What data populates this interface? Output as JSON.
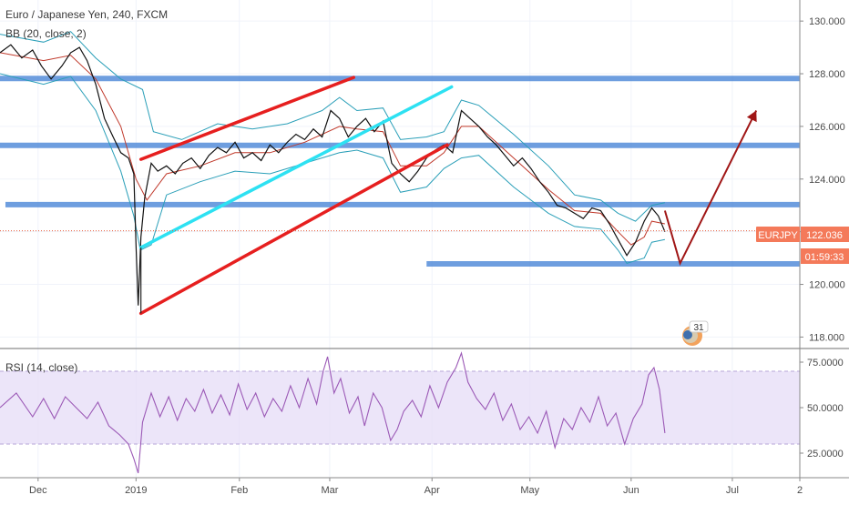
{
  "chart_title": "Euro / Japanese Yen, 240, FXCM",
  "bb_label": "BB (20, close, 2)",
  "rsi_label": "RSI (14, close)",
  "price_badge": {
    "symbol": "EURJPY",
    "price": "122.036",
    "countdown": "01:59:33"
  },
  "event_badge": "31",
  "colors": {
    "price": "#111111",
    "bollinger": "#2a9fb8",
    "sma": "#c0392b",
    "hline": "#4a86d8",
    "red_trend": "#e61f1f",
    "cyan_trend": "#2de1f2",
    "arrow": "#a01616",
    "rsi": "#9b59b6",
    "rsi_band": "#e5dcf7",
    "badge_bg": "#f47a5a"
  },
  "chart_data": [
    {
      "type": "line",
      "panel": "price",
      "y_ticks": [
        "130.000",
        "128.000",
        "126.000",
        "124.000",
        "122.000",
        "120.000",
        "118.000"
      ],
      "x_ticks": [
        "Dec",
        "2019",
        "Feb",
        "Mar",
        "Apr",
        "May",
        "Jun",
        "Jul",
        "2"
      ],
      "ylim": [
        117.6,
        130.8
      ],
      "anchors": {
        "x": [
          "Nov 20",
          "Dec 1",
          "2019 Jan 1",
          "Feb 1",
          "Mar 1",
          "Apr 1",
          "May 1",
          "Jun 1",
          "Jul 1",
          "Jul 21"
        ],
        "x_index": [
          -3.5,
          0,
          9,
          18.5,
          26.8,
          36.2,
          45.2,
          54.5,
          63.8,
          70
        ]
      },
      "price_points": [
        [
          -3.5,
          128.8
        ],
        [
          -2.5,
          129.1
        ],
        [
          -1.5,
          128.6
        ],
        [
          -0.5,
          128.9
        ],
        [
          0.3,
          128.3
        ],
        [
          1.2,
          127.8
        ],
        [
          2.2,
          128.3
        ],
        [
          3.0,
          128.8
        ],
        [
          3.8,
          129.0
        ],
        [
          4.5,
          128.5
        ],
        [
          5.3,
          127.6
        ],
        [
          6.1,
          126.3
        ],
        [
          6.9,
          125.6
        ],
        [
          7.6,
          125.0
        ],
        [
          8.3,
          124.8
        ],
        [
          8.8,
          124.2
        ],
        [
          9.0,
          121.5
        ],
        [
          9.2,
          119.2
        ],
        [
          9.45,
          121.8
        ],
        [
          9.8,
          123.3
        ],
        [
          10.4,
          124.6
        ],
        [
          11.0,
          124.3
        ],
        [
          11.8,
          124.5
        ],
        [
          12.6,
          124.2
        ],
        [
          13.3,
          124.6
        ],
        [
          14.1,
          124.8
        ],
        [
          14.9,
          124.4
        ],
        [
          15.7,
          124.9
        ],
        [
          16.5,
          125.2
        ],
        [
          17.3,
          125.0
        ],
        [
          18.1,
          125.4
        ],
        [
          18.9,
          124.8
        ],
        [
          19.7,
          125.0
        ],
        [
          20.5,
          124.7
        ],
        [
          21.3,
          125.3
        ],
        [
          22.1,
          125.0
        ],
        [
          22.9,
          125.4
        ],
        [
          23.7,
          125.7
        ],
        [
          24.5,
          125.5
        ],
        [
          25.3,
          125.9
        ],
        [
          26.1,
          125.6
        ],
        [
          26.9,
          126.6
        ],
        [
          27.7,
          126.3
        ],
        [
          28.5,
          125.6
        ],
        [
          29.3,
          126.0
        ],
        [
          30.1,
          126.3
        ],
        [
          30.9,
          125.8
        ],
        [
          31.7,
          126.2
        ],
        [
          32.5,
          124.6
        ],
        [
          33.3,
          124.2
        ],
        [
          34.1,
          123.9
        ],
        [
          34.9,
          124.3
        ],
        [
          35.7,
          124.8
        ],
        [
          36.5,
          125.1
        ],
        [
          37.3,
          125.3
        ],
        [
          38.1,
          125.0
        ],
        [
          38.9,
          126.6
        ],
        [
          39.7,
          126.3
        ],
        [
          40.5,
          126.0
        ],
        [
          41.3,
          125.6
        ],
        [
          42.1,
          125.3
        ],
        [
          42.9,
          124.9
        ],
        [
          43.7,
          124.5
        ],
        [
          44.5,
          124.8
        ],
        [
          45.3,
          124.4
        ],
        [
          46.1,
          123.9
        ],
        [
          46.9,
          123.5
        ],
        [
          47.7,
          123.0
        ],
        [
          48.5,
          122.9
        ],
        [
          49.3,
          122.7
        ],
        [
          50.1,
          122.5
        ],
        [
          50.9,
          122.9
        ],
        [
          51.7,
          122.8
        ],
        [
          52.5,
          122.3
        ],
        [
          53.3,
          121.7
        ],
        [
          54.1,
          121.1
        ],
        [
          54.9,
          121.6
        ],
        [
          55.7,
          122.4
        ],
        [
          56.4,
          122.9
        ],
        [
          57.0,
          122.6
        ],
        [
          57.6,
          122.0
        ]
      ],
      "upper_band_points": [
        [
          -3.5,
          129.5
        ],
        [
          0.5,
          129.2
        ],
        [
          3.0,
          129.6
        ],
        [
          5.3,
          128.6
        ],
        [
          7.6,
          127.8
        ],
        [
          9.6,
          127.4
        ],
        [
          10.6,
          125.8
        ],
        [
          13.2,
          125.5
        ],
        [
          16.5,
          126.1
        ],
        [
          19.7,
          125.9
        ],
        [
          22.9,
          126.1
        ],
        [
          26.1,
          126.6
        ],
        [
          27.7,
          127.1
        ],
        [
          29.3,
          126.6
        ],
        [
          31.7,
          126.7
        ],
        [
          33.3,
          125.5
        ],
        [
          35.7,
          125.6
        ],
        [
          37.3,
          125.8
        ],
        [
          38.9,
          127.0
        ],
        [
          40.5,
          126.8
        ],
        [
          43.7,
          125.7
        ],
        [
          46.9,
          124.5
        ],
        [
          49.3,
          123.4
        ],
        [
          51.7,
          123.2
        ],
        [
          53.3,
          122.7
        ],
        [
          54.9,
          122.4
        ],
        [
          56.4,
          123.0
        ],
        [
          57.6,
          123.1
        ]
      ],
      "lower_band_points": [
        [
          -3.5,
          128.0
        ],
        [
          0.5,
          127.6
        ],
        [
          3.0,
          127.9
        ],
        [
          5.3,
          126.6
        ],
        [
          7.6,
          124.3
        ],
        [
          8.8,
          122.6
        ],
        [
          9.4,
          121.3
        ],
        [
          10.4,
          121.5
        ],
        [
          11.8,
          123.4
        ],
        [
          14.9,
          123.9
        ],
        [
          18.1,
          124.3
        ],
        [
          21.3,
          124.2
        ],
        [
          24.5,
          124.6
        ],
        [
          27.7,
          125.0
        ],
        [
          29.3,
          125.1
        ],
        [
          31.7,
          124.8
        ],
        [
          33.3,
          123.5
        ],
        [
          35.7,
          123.7
        ],
        [
          37.3,
          124.4
        ],
        [
          38.9,
          124.8
        ],
        [
          40.5,
          124.9
        ],
        [
          43.7,
          123.7
        ],
        [
          46.9,
          122.7
        ],
        [
          49.3,
          122.2
        ],
        [
          51.7,
          122.1
        ],
        [
          53.3,
          121.3
        ],
        [
          54.1,
          120.8
        ],
        [
          55.7,
          121.0
        ],
        [
          56.4,
          121.6
        ],
        [
          57.6,
          121.7
        ]
      ],
      "sma_points": [
        [
          -3.5,
          128.8
        ],
        [
          0.5,
          128.5
        ],
        [
          3.0,
          128.7
        ],
        [
          5.3,
          127.8
        ],
        [
          7.6,
          126.0
        ],
        [
          9.0,
          124.0
        ],
        [
          10.0,
          123.2
        ],
        [
          11.8,
          124.2
        ],
        [
          14.9,
          124.5
        ],
        [
          18.1,
          125.0
        ],
        [
          21.3,
          125.0
        ],
        [
          24.5,
          125.4
        ],
        [
          27.7,
          126.0
        ],
        [
          29.3,
          125.9
        ],
        [
          31.7,
          125.8
        ],
        [
          33.3,
          124.5
        ],
        [
          35.7,
          124.5
        ],
        [
          37.3,
          125.0
        ],
        [
          38.9,
          126.0
        ],
        [
          40.5,
          126.0
        ],
        [
          43.7,
          124.8
        ],
        [
          46.9,
          123.6
        ],
        [
          49.3,
          122.8
        ],
        [
          51.7,
          122.7
        ],
        [
          53.3,
          122.0
        ],
        [
          54.5,
          121.5
        ],
        [
          55.7,
          121.8
        ],
        [
          56.4,
          122.4
        ],
        [
          57.6,
          122.3
        ]
      ],
      "horizontal_levels": [
        {
          "y": 127.82,
          "x_from": -3.5,
          "x_to": 70.0
        },
        {
          "y": 125.28,
          "x_from": -3.5,
          "x_to": 70.0
        },
        {
          "y": 123.03,
          "x_from": -3.0,
          "x_to": 70.0
        },
        {
          "y": 120.78,
          "x_from": 35.7,
          "x_to": 70.0
        }
      ],
      "trendlines": [
        {
          "color": "red_trend",
          "from": [
            9.45,
            124.75
          ],
          "to": [
            29.0,
            127.86
          ]
        },
        {
          "color": "red_trend",
          "from": [
            9.45,
            118.9
          ],
          "to": [
            37.6,
            125.3
          ]
        },
        {
          "color": "cyan_trend",
          "from": [
            9.45,
            121.4
          ],
          "to": [
            38.0,
            127.5
          ]
        }
      ],
      "vertical_marker": {
        "x": 9.45,
        "y_from": 118.9,
        "y_to": 121.4
      },
      "projection_arrow": [
        [
          57.6,
          122.8
        ],
        [
          59.0,
          120.8
        ],
        [
          66.0,
          126.6
        ]
      ],
      "last_price": 122.036
    },
    {
      "type": "line",
      "panel": "rsi",
      "y_ticks": [
        "75.0000",
        "50.0000",
        "25.0000"
      ],
      "ylim": [
        12,
        82
      ],
      "band": [
        30,
        70
      ],
      "points": [
        [
          -3.5,
          50
        ],
        [
          -2.0,
          58
        ],
        [
          -0.5,
          45
        ],
        [
          0.5,
          55
        ],
        [
          1.5,
          44
        ],
        [
          2.5,
          56
        ],
        [
          3.5,
          50
        ],
        [
          4.5,
          44
        ],
        [
          5.5,
          53
        ],
        [
          6.5,
          40
        ],
        [
          7.5,
          35
        ],
        [
          8.3,
          30
        ],
        [
          8.8,
          22
        ],
        [
          9.2,
          14
        ],
        [
          9.6,
          42
        ],
        [
          10.4,
          58
        ],
        [
          11.2,
          45
        ],
        [
          12.0,
          56
        ],
        [
          12.8,
          43
        ],
        [
          13.6,
          55
        ],
        [
          14.4,
          48
        ],
        [
          15.2,
          60
        ],
        [
          16.0,
          47
        ],
        [
          16.8,
          57
        ],
        [
          17.6,
          46
        ],
        [
          18.4,
          63
        ],
        [
          19.2,
          49
        ],
        [
          20.0,
          58
        ],
        [
          20.8,
          45
        ],
        [
          21.6,
          55
        ],
        [
          22.4,
          48
        ],
        [
          23.2,
          62
        ],
        [
          24.0,
          50
        ],
        [
          24.8,
          66
        ],
        [
          25.6,
          52
        ],
        [
          26.2,
          70
        ],
        [
          26.6,
          78
        ],
        [
          27.2,
          58
        ],
        [
          27.8,
          66
        ],
        [
          28.6,
          47
        ],
        [
          29.4,
          56
        ],
        [
          30.0,
          40
        ],
        [
          30.8,
          58
        ],
        [
          31.6,
          50
        ],
        [
          32.4,
          32
        ],
        [
          33.0,
          38
        ],
        [
          33.6,
          48
        ],
        [
          34.4,
          54
        ],
        [
          35.2,
          45
        ],
        [
          36.0,
          62
        ],
        [
          36.8,
          50
        ],
        [
          37.6,
          64
        ],
        [
          38.4,
          72
        ],
        [
          38.9,
          80
        ],
        [
          39.5,
          64
        ],
        [
          40.3,
          55
        ],
        [
          41.1,
          49
        ],
        [
          41.9,
          58
        ],
        [
          42.7,
          43
        ],
        [
          43.5,
          52
        ],
        [
          44.3,
          38
        ],
        [
          45.1,
          45
        ],
        [
          45.9,
          36
        ],
        [
          46.7,
          48
        ],
        [
          47.5,
          28
        ],
        [
          48.3,
          44
        ],
        [
          49.1,
          38
        ],
        [
          49.9,
          50
        ],
        [
          50.7,
          42
        ],
        [
          51.5,
          56
        ],
        [
          52.3,
          40
        ],
        [
          53.1,
          47
        ],
        [
          53.9,
          30
        ],
        [
          54.7,
          44
        ],
        [
          55.5,
          52
        ],
        [
          56.1,
          68
        ],
        [
          56.6,
          72
        ],
        [
          57.1,
          60
        ],
        [
          57.6,
          36
        ]
      ]
    }
  ]
}
